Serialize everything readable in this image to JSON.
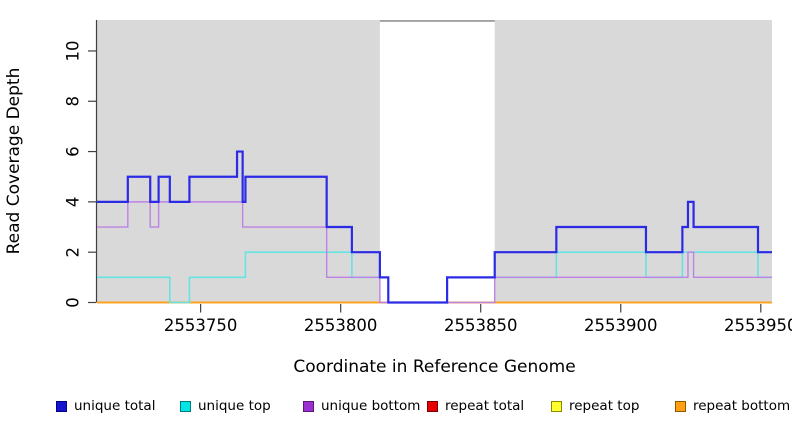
{
  "chart_data": {
    "type": "line",
    "step": true,
    "title": "",
    "xlabel": "Coordinate in Reference Genome",
    "ylabel": "Read Coverage Depth",
    "xlim": [
      2553713,
      2553954
    ],
    "ylim": [
      0,
      11.23
    ],
    "xticks": [
      2553750,
      2553800,
      2553850,
      2553900,
      2553950
    ],
    "xtick_labels": [
      "2553750",
      "2553800",
      "2553850",
      "2553900",
      "2553950"
    ],
    "yticks": [
      0,
      2,
      4,
      6,
      8,
      10
    ],
    "ytick_labels": [
      "0",
      "2",
      "4",
      "6",
      "8",
      "10"
    ],
    "grid": false,
    "background": "#d9d9d9",
    "axis_color": "#404040",
    "highlight_band": {
      "x0": 2553814,
      "x1": 2553855,
      "color": "#ffffff",
      "top_border": "#8f8f8f"
    },
    "legend_position": "bottom",
    "draw_order": [
      3,
      4,
      5,
      1,
      2,
      0
    ],
    "series": [
      {
        "name": "unique total",
        "slug": "unique-total",
        "color": "#2b2be6",
        "width": 2.2,
        "breakpoints": [
          [
            2553713,
            4
          ],
          [
            2553724,
            5
          ],
          [
            2553732,
            4
          ],
          [
            2553735,
            5
          ],
          [
            2553739,
            4
          ],
          [
            2553746,
            5
          ],
          [
            2553763,
            6
          ],
          [
            2553765,
            4
          ],
          [
            2553766,
            5
          ],
          [
            2553795,
            3
          ],
          [
            2553804,
            2
          ],
          [
            2553814,
            1
          ],
          [
            2553817,
            0
          ],
          [
            2553838,
            1
          ],
          [
            2553855,
            2
          ],
          [
            2553877,
            3
          ],
          [
            2553909,
            2
          ],
          [
            2553922,
            3
          ],
          [
            2553924,
            4
          ],
          [
            2553926,
            3
          ],
          [
            2553949,
            2
          ]
        ]
      },
      {
        "name": "unique top",
        "slug": "unique-top",
        "color": "#66e3e3",
        "width": 1.6,
        "breakpoints": [
          [
            2553713,
            1
          ],
          [
            2553739,
            0
          ],
          [
            2553746,
            1
          ],
          [
            2553766,
            2
          ],
          [
            2553804,
            1
          ],
          [
            2553817,
            0
          ],
          [
            2553838,
            1
          ],
          [
            2553877,
            2
          ],
          [
            2553909,
            1
          ],
          [
            2553922,
            2
          ],
          [
            2553949,
            1
          ]
        ]
      },
      {
        "name": "unique bottom",
        "slug": "unique-bottom",
        "color": "#be82e5",
        "width": 1.4,
        "breakpoints": [
          [
            2553713,
            3
          ],
          [
            2553724,
            4
          ],
          [
            2553732,
            3
          ],
          [
            2553735,
            4
          ],
          [
            2553765,
            3
          ],
          [
            2553795,
            1
          ],
          [
            2553814,
            0
          ],
          [
            2553855,
            1
          ],
          [
            2553924,
            2
          ],
          [
            2553926,
            1
          ]
        ]
      },
      {
        "name": "repeat total",
        "slug": "repeat-total",
        "color": "#cc2222",
        "width": 1.4,
        "breakpoints": [
          [
            2553713,
            0
          ]
        ]
      },
      {
        "name": "repeat top",
        "slug": "repeat-top",
        "color": "#ffff00",
        "width": 1.4,
        "breakpoints": [
          [
            2553713,
            0
          ]
        ]
      },
      {
        "name": "repeat bottom",
        "slug": "repeat-bottom",
        "color": "#ffa01e",
        "width": 1.8,
        "breakpoints": [
          [
            2553713,
            0
          ]
        ]
      }
    ]
  },
  "legend": {
    "items": [
      {
        "label": "unique total",
        "color": "#1414cc",
        "border": "#00008b"
      },
      {
        "label": "unique top",
        "color": "#00e5e5",
        "border": "#007a7a"
      },
      {
        "label": "unique bottom",
        "color": "#9b30d0",
        "border": "#5b1a7a"
      },
      {
        "label": "repeat total",
        "color": "#e60000",
        "border": "#7a0000"
      },
      {
        "label": "repeat top",
        "color": "#ffff2e",
        "border": "#8b8b00"
      },
      {
        "label": "repeat bottom",
        "color": "#ffa014",
        "border": "#8b5a00"
      }
    ]
  }
}
